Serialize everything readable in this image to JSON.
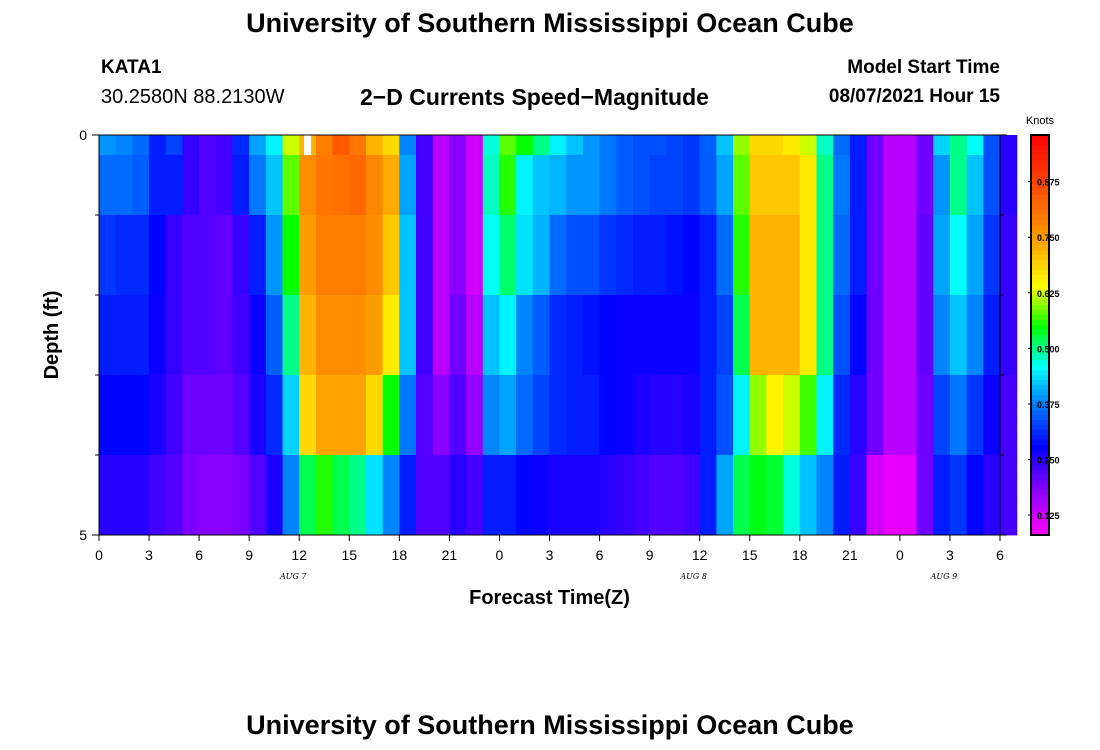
{
  "header": {
    "title": "University of Southern Mississippi Ocean Cube",
    "station_id": "KATA1",
    "station_coords": "30.2580N  88.2130W",
    "chart_title": "2−D Currents Speed−Magnitude",
    "model_start_label": "Model Start Time",
    "model_start_value": "08/07/2021 Hour 15"
  },
  "footer": {
    "title": "University of Southern Mississippi Ocean Cube"
  },
  "chart_data": {
    "type": "heatmap",
    "title": "2−D Currents Speed−Magnitude",
    "xlabel": "Forecast Time(Z)",
    "ylabel": "Depth (ft)",
    "x_start_hour": 0,
    "x_end_hour": 54,
    "hours_per_column": 1,
    "x_tick_labels": [
      "0",
      "3",
      "6",
      "9",
      "12",
      "15",
      "18",
      "21",
      "0",
      "3",
      "6",
      "9",
      "12",
      "15",
      "18",
      "21",
      "0",
      "3",
      "6"
    ],
    "date_labels": [
      {
        "label": "AUG  7",
        "hour": 12
      },
      {
        "label": "AUG  8",
        "hour": 36
      },
      {
        "label": "AUG  9",
        "hour": 51
      }
    ],
    "y_tick_labels": [
      "0",
      "5"
    ],
    "ylim": [
      0,
      5
    ],
    "depth_layers": [
      0,
      0.5,
      1.5,
      2.5,
      3.5,
      4.5
    ],
    "colorbar": {
      "unit_label": "Knots",
      "min": 0.08,
      "max": 0.98,
      "tick_values": [
        0.125,
        0.25,
        0.375,
        0.5,
        0.625,
        0.75,
        0.875
      ],
      "tick_labels": [
        "0.125",
        "0.250",
        "0.375",
        "0.500",
        "0.625",
        "0.750",
        "0.875"
      ]
    },
    "missing_cells": [
      {
        "layer": 0,
        "hour": 12.5
      }
    ],
    "rows": [
      [
        0.39,
        0.38,
        0.36,
        0.3,
        0.33,
        0.24,
        0.22,
        0.23,
        0.31,
        0.4,
        0.45,
        0.62,
        0.72,
        0.79,
        0.84,
        0.8,
        0.72,
        0.68,
        0.38,
        0.23,
        0.14,
        0.18,
        0.12,
        0.47,
        0.58,
        0.55,
        0.5,
        0.45,
        0.42,
        0.39,
        0.37,
        0.35,
        0.34,
        0.34,
        0.33,
        0.32,
        0.35,
        0.42,
        0.6,
        0.68,
        0.68,
        0.66,
        0.62,
        0.48,
        0.36,
        0.3,
        0.2,
        0.14,
        0.14,
        0.2,
        0.43,
        0.5,
        0.46,
        0.34,
        0.25
      ],
      [
        0.36,
        0.36,
        0.35,
        0.3,
        0.3,
        0.24,
        0.22,
        0.23,
        0.3,
        0.37,
        0.42,
        0.58,
        0.77,
        0.8,
        0.81,
        0.82,
        0.78,
        0.73,
        0.4,
        0.23,
        0.14,
        0.18,
        0.12,
        0.48,
        0.56,
        0.45,
        0.42,
        0.41,
        0.39,
        0.39,
        0.37,
        0.35,
        0.34,
        0.33,
        0.33,
        0.32,
        0.35,
        0.4,
        0.58,
        0.7,
        0.7,
        0.7,
        0.66,
        0.5,
        0.37,
        0.3,
        0.2,
        0.14,
        0.14,
        0.2,
        0.39,
        0.5,
        0.42,
        0.34,
        0.25
      ],
      [
        0.32,
        0.31,
        0.31,
        0.28,
        0.24,
        0.22,
        0.22,
        0.21,
        0.24,
        0.3,
        0.39,
        0.55,
        0.75,
        0.79,
        0.79,
        0.79,
        0.77,
        0.7,
        0.42,
        0.23,
        0.14,
        0.18,
        0.12,
        0.46,
        0.51,
        0.44,
        0.41,
        0.36,
        0.34,
        0.34,
        0.32,
        0.31,
        0.3,
        0.3,
        0.29,
        0.28,
        0.3,
        0.36,
        0.56,
        0.72,
        0.72,
        0.72,
        0.66,
        0.5,
        0.36,
        0.3,
        0.2,
        0.14,
        0.14,
        0.21,
        0.4,
        0.46,
        0.4,
        0.32,
        0.24
      ],
      [
        0.3,
        0.3,
        0.3,
        0.27,
        0.24,
        0.22,
        0.22,
        0.21,
        0.23,
        0.27,
        0.35,
        0.5,
        0.72,
        0.77,
        0.77,
        0.77,
        0.75,
        0.66,
        0.42,
        0.23,
        0.14,
        0.2,
        0.14,
        0.42,
        0.45,
        0.38,
        0.35,
        0.31,
        0.3,
        0.29,
        0.28,
        0.27,
        0.27,
        0.27,
        0.27,
        0.27,
        0.3,
        0.33,
        0.52,
        0.72,
        0.72,
        0.72,
        0.66,
        0.5,
        0.34,
        0.28,
        0.2,
        0.14,
        0.14,
        0.21,
        0.38,
        0.42,
        0.38,
        0.3,
        0.24
      ],
      [
        0.28,
        0.28,
        0.28,
        0.26,
        0.23,
        0.2,
        0.2,
        0.2,
        0.22,
        0.26,
        0.31,
        0.43,
        0.68,
        0.74,
        0.74,
        0.74,
        0.68,
        0.55,
        0.37,
        0.22,
        0.18,
        0.22,
        0.17,
        0.38,
        0.4,
        0.36,
        0.33,
        0.31,
        0.3,
        0.3,
        0.28,
        0.27,
        0.26,
        0.25,
        0.25,
        0.26,
        0.3,
        0.34,
        0.45,
        0.6,
        0.65,
        0.62,
        0.57,
        0.45,
        0.31,
        0.25,
        0.2,
        0.14,
        0.14,
        0.2,
        0.33,
        0.37,
        0.32,
        0.27,
        0.23
      ],
      [
        0.25,
        0.25,
        0.25,
        0.23,
        0.22,
        0.19,
        0.18,
        0.18,
        0.19,
        0.22,
        0.26,
        0.38,
        0.52,
        0.56,
        0.52,
        0.5,
        0.44,
        0.38,
        0.3,
        0.22,
        0.22,
        0.25,
        0.23,
        0.3,
        0.3,
        0.28,
        0.27,
        0.26,
        0.26,
        0.26,
        0.25,
        0.24,
        0.23,
        0.22,
        0.22,
        0.23,
        0.3,
        0.4,
        0.52,
        0.54,
        0.53,
        0.47,
        0.42,
        0.38,
        0.3,
        0.24,
        0.12,
        0.1,
        0.1,
        0.2,
        0.3,
        0.32,
        0.28,
        0.25,
        0.23
      ]
    ]
  }
}
